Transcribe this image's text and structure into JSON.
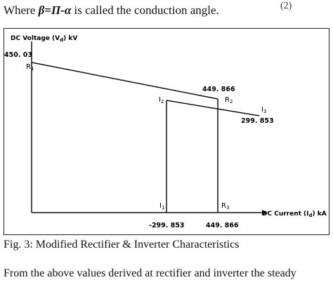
{
  "header_line": {
    "prefix": "Where ",
    "symbol": "β=Π-α",
    "suffix": " is called the conduction angle.",
    "equation_number": "(2)"
  },
  "figure": {
    "y_axis_label": "DC Voltage (V",
    "y_axis_label_sub": "d",
    "y_axis_label_unit": ") kV",
    "x_axis_label": "DC Current (I",
    "x_axis_label_sub": "d",
    "x_axis_label_unit": ") kA",
    "labels": {
      "v_start": "450. 03",
      "r1": "R",
      "r1_sub": "1",
      "r2": "R",
      "r2_sub": "2",
      "r3": "R",
      "r3_sub": "3",
      "i1": "I",
      "i1_sub": "1",
      "i2": "I",
      "i2_sub": "2",
      "i3": "I",
      "i3_sub": "3",
      "v_r2": "449. 866",
      "v_i3": "299. 853",
      "x_i1": "-299. 853",
      "x_r3": "449. 866"
    }
  },
  "caption": "Fig. 3: Modified Rectifier & Inverter Characteristics",
  "body_text": "From the above values derived at rectifier and inverter the steady"
}
